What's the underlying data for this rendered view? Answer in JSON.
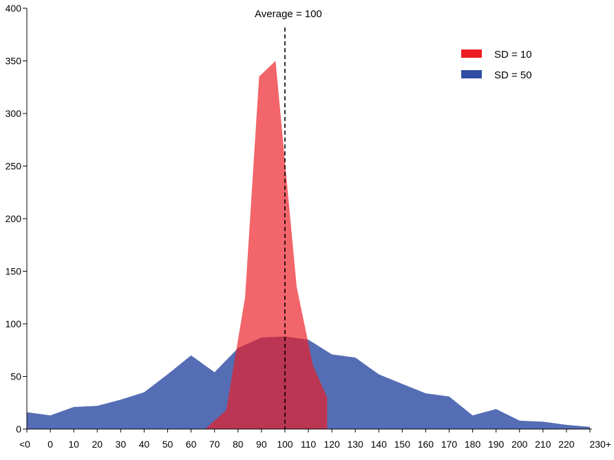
{
  "chart_data": {
    "type": "area",
    "title": "",
    "xlabel": "",
    "ylabel": "",
    "ylim": [
      0,
      400
    ],
    "yticks": [
      0,
      50,
      100,
      150,
      200,
      250,
      300,
      350,
      400
    ],
    "x_tick_labels": [
      "<0",
      "0",
      "10",
      "20",
      "30",
      "40",
      "50",
      "60",
      "70",
      "80",
      "90",
      "100",
      "110",
      "120",
      "130",
      "140",
      "150",
      "160",
      "170",
      "180",
      "190",
      "200",
      "210",
      "220",
      "230+"
    ],
    "grid": false,
    "legend_position": "top-right",
    "series": [
      {
        "name": "SD = 50",
        "color": "#2f4da3",
        "opacity": 0.82,
        "x_index": [
          0,
          1,
          2,
          3,
          4,
          5,
          6,
          7,
          8,
          9,
          10,
          11,
          12,
          13,
          14,
          15,
          16,
          17,
          18,
          19,
          20,
          21,
          22,
          23,
          24
        ],
        "values": [
          16,
          13,
          21,
          22,
          28,
          35,
          52,
          70,
          54,
          77,
          87,
          88,
          85,
          71,
          68,
          52,
          43,
          34,
          31,
          13,
          19,
          8,
          7,
          4,
          2
        ]
      },
      {
        "name": "SD = 10",
        "color": "#ec1c24",
        "opacity": 0.68,
        "x_index": [
          7.6,
          8.5,
          9.3,
          9.9,
          10.6,
          11.5,
          12.2,
          12.8,
          12.8
        ],
        "values": [
          0,
          18,
          125,
          335,
          350,
          135,
          60,
          30,
          0
        ]
      }
    ],
    "annotations": [
      {
        "type": "vline",
        "x": 100,
        "x_index": 11,
        "label": "Average = 100",
        "style": "dashed"
      }
    ]
  }
}
